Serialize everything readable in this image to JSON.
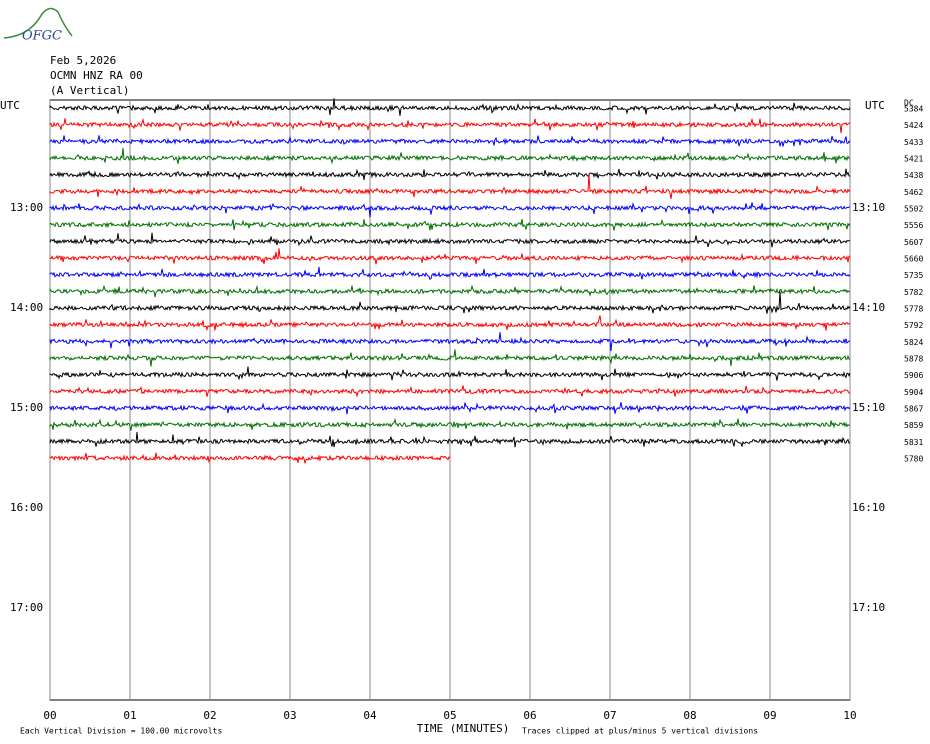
{
  "chart_data": {
    "type": "helicorder",
    "logo": "OFGC",
    "title": [
      "Feb 5,2026",
      "OCMN HNZ RA 00",
      "(A Vertical)"
    ],
    "left_header": "UTC",
    "right_header": "UTC",
    "dc_header": "DC",
    "left_labels": [
      "13:00",
      "14:00",
      "15:00",
      "16:00",
      "17:00"
    ],
    "right_labels": [
      "13:10",
      "14:10",
      "15:10",
      "16:10",
      "17:10"
    ],
    "dc_values": [
      "5384",
      "5424",
      "5433",
      "5421",
      "5438",
      "5462",
      "5502",
      "5556",
      "5607",
      "5660",
      "5735",
      "5782",
      "5778",
      "5792",
      "5824",
      "5878",
      "5906",
      "5904",
      "5867",
      "5859",
      "5831",
      "5780"
    ],
    "trace_colors": [
      "#000000",
      "#ff0000",
      "#0000ff",
      "#007000"
    ],
    "xlabel": "TIME (MINUTES)",
    "xlim": [
      0,
      10
    ],
    "xticks": [
      {
        "value": 0,
        "label": "00"
      },
      {
        "value": 1,
        "label": "01"
      },
      {
        "value": 2,
        "label": "02"
      },
      {
        "value": 3,
        "label": "03"
      },
      {
        "value": 4,
        "label": "04"
      },
      {
        "value": 5,
        "label": "05"
      },
      {
        "value": 6,
        "label": "06"
      },
      {
        "value": 7,
        "label": "07"
      },
      {
        "value": 8,
        "label": "08"
      },
      {
        "value": 9,
        "label": "09"
      },
      {
        "value": 10,
        "label": "10"
      }
    ],
    "last_trace_end": 5,
    "footer_left": "Each Vertical Division =  100.00 microvolts",
    "footer_right": "Traces clipped at plus/minus 5 vertical divisions"
  }
}
